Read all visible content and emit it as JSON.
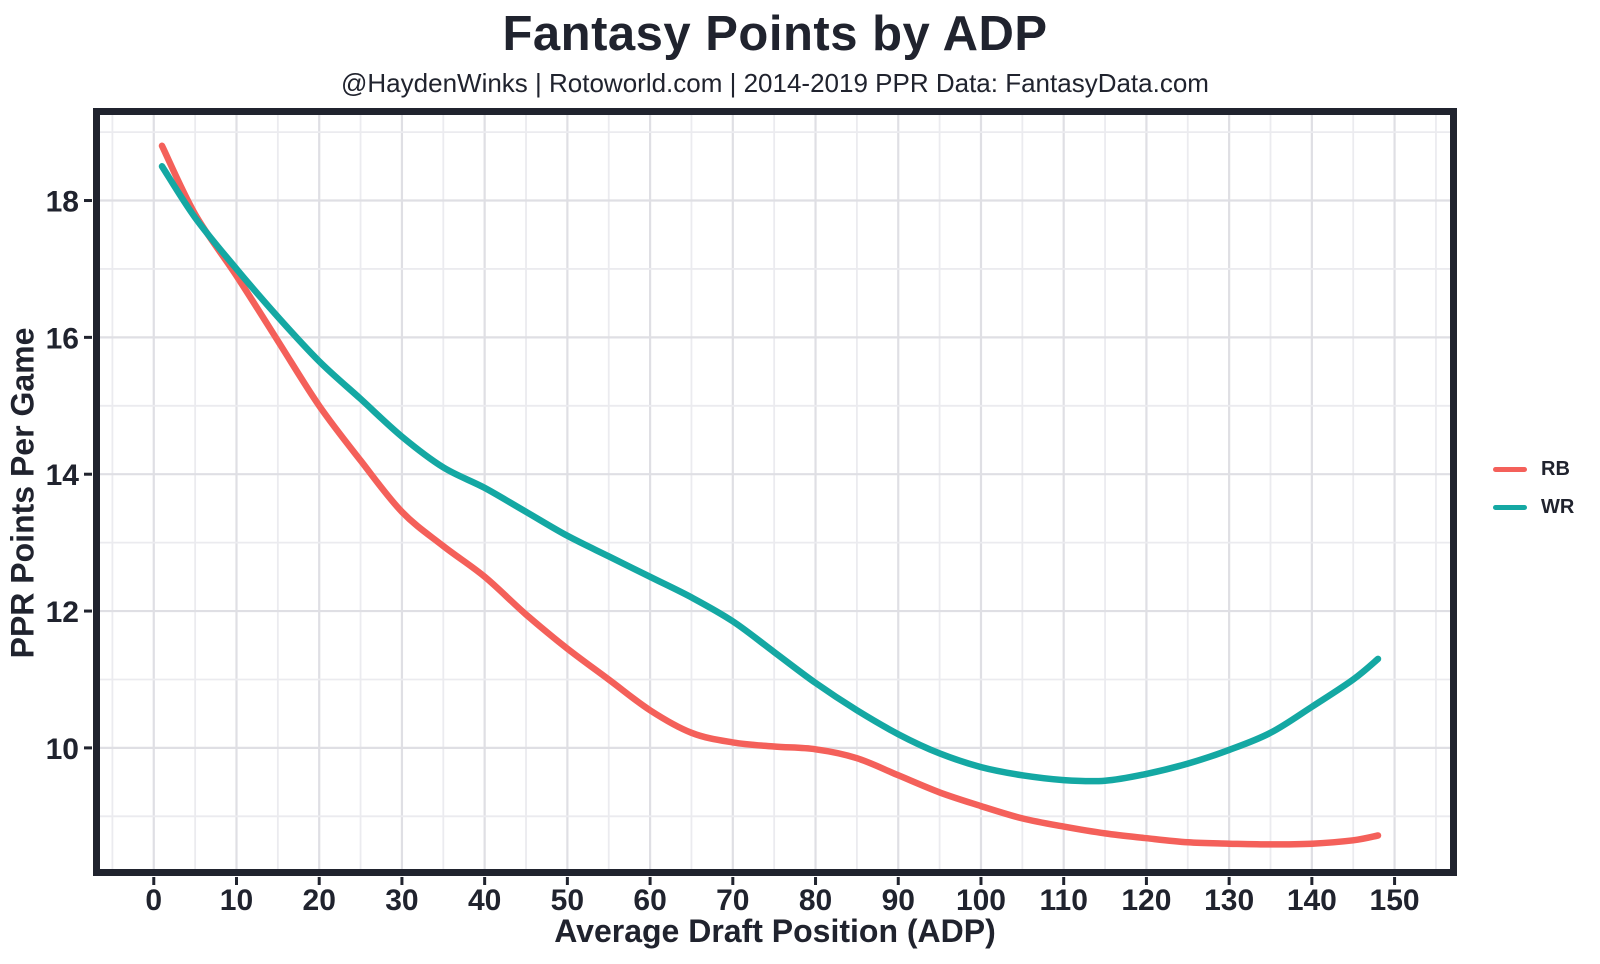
{
  "header": {
    "title": "Fantasy Points by ADP",
    "subtitle": "@HaydenWinks | Rotoworld.com | 2014-2019 PPR Data: FantasyData.com"
  },
  "colors": {
    "text": "#20232E",
    "panel_border": "#20232E",
    "grid_major": "#DFDFE4",
    "grid_minor": "#EBEBEF",
    "background": "#FFFFFF",
    "rb_red": "#F4605A",
    "wr_teal": "#14A8A3"
  },
  "chart_data": {
    "type": "line",
    "title": "Fantasy Points by ADP",
    "subtitle": "@HaydenWinks | Rotoworld.com | 2014-2019 PPR Data: FantasyData.com",
    "xlabel": "Average Draft Position (ADP)",
    "ylabel": "PPR Points Per Game",
    "xlim": [
      -6.5,
      156.7
    ],
    "ylim": [
      8.23,
      19.25
    ],
    "x_ticks": [
      0,
      10,
      20,
      30,
      40,
      50,
      60,
      70,
      80,
      90,
      100,
      110,
      120,
      130,
      140,
      150
    ],
    "y_ticks": [
      10,
      12,
      14,
      16,
      18
    ],
    "x_minor_step": 5,
    "y_minor_step": 1,
    "grid": true,
    "legend_position": "right-outside",
    "x": [
      1,
      5,
      10,
      15,
      20,
      25,
      30,
      35,
      40,
      45,
      50,
      55,
      60,
      65,
      70,
      75,
      80,
      85,
      90,
      95,
      100,
      105,
      110,
      115,
      120,
      125,
      130,
      135,
      140,
      145,
      148
    ],
    "series": [
      {
        "name": "RB",
        "color": "#F4605A",
        "values": [
          18.8,
          17.8,
          16.9,
          15.95,
          15.0,
          14.2,
          13.45,
          12.95,
          12.5,
          11.95,
          11.45,
          11.0,
          10.55,
          10.22,
          10.08,
          10.02,
          9.98,
          9.85,
          9.6,
          9.35,
          9.15,
          8.97,
          8.85,
          8.75,
          8.68,
          8.62,
          8.6,
          8.59,
          8.6,
          8.65,
          8.72
        ]
      },
      {
        "name": "WR",
        "color": "#14A8A3",
        "values": [
          18.5,
          17.75,
          17.0,
          16.3,
          15.65,
          15.1,
          14.55,
          14.1,
          13.8,
          13.45,
          13.1,
          12.8,
          12.5,
          12.2,
          11.85,
          11.4,
          10.95,
          10.55,
          10.2,
          9.92,
          9.72,
          9.6,
          9.53,
          9.52,
          9.62,
          9.77,
          9.97,
          10.22,
          10.6,
          11.0,
          11.3
        ]
      }
    ]
  }
}
